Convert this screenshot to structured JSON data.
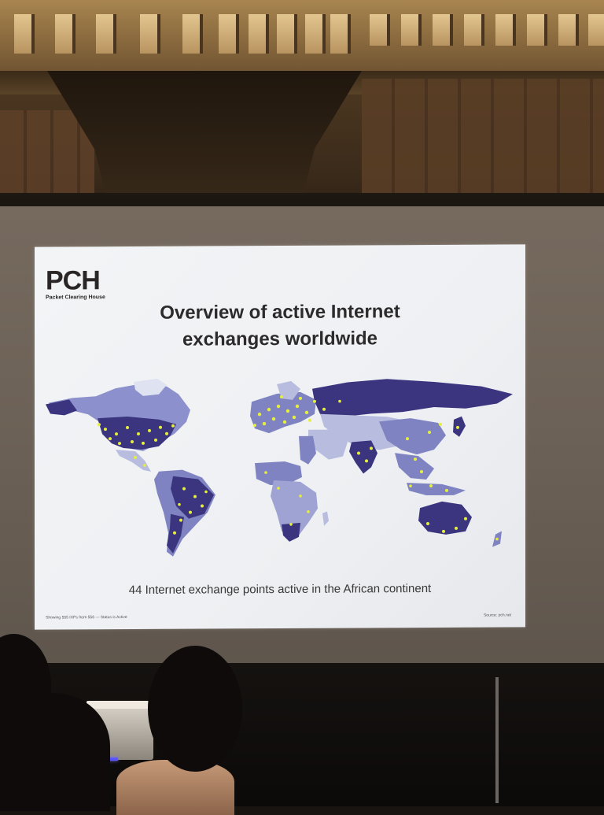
{
  "slide": {
    "logo": {
      "name": "PCH",
      "tagline": "Packet Clearing House"
    },
    "title": {
      "line1": "Overview of active Internet",
      "line2": "exchanges worldwide"
    },
    "caption": "44 Internet exchange points active in the African continent",
    "footer_left": "Showing 555 IXPs from 556 — Status is Active",
    "footer_right": "Source: pch.net"
  },
  "colors": {
    "land_dark": "#3b347f",
    "land_mid": "#7f83c2",
    "land_light": "#b8bde0",
    "ixp_marker": "#e6f03c",
    "slide_bg": "#f1f3f5"
  }
}
